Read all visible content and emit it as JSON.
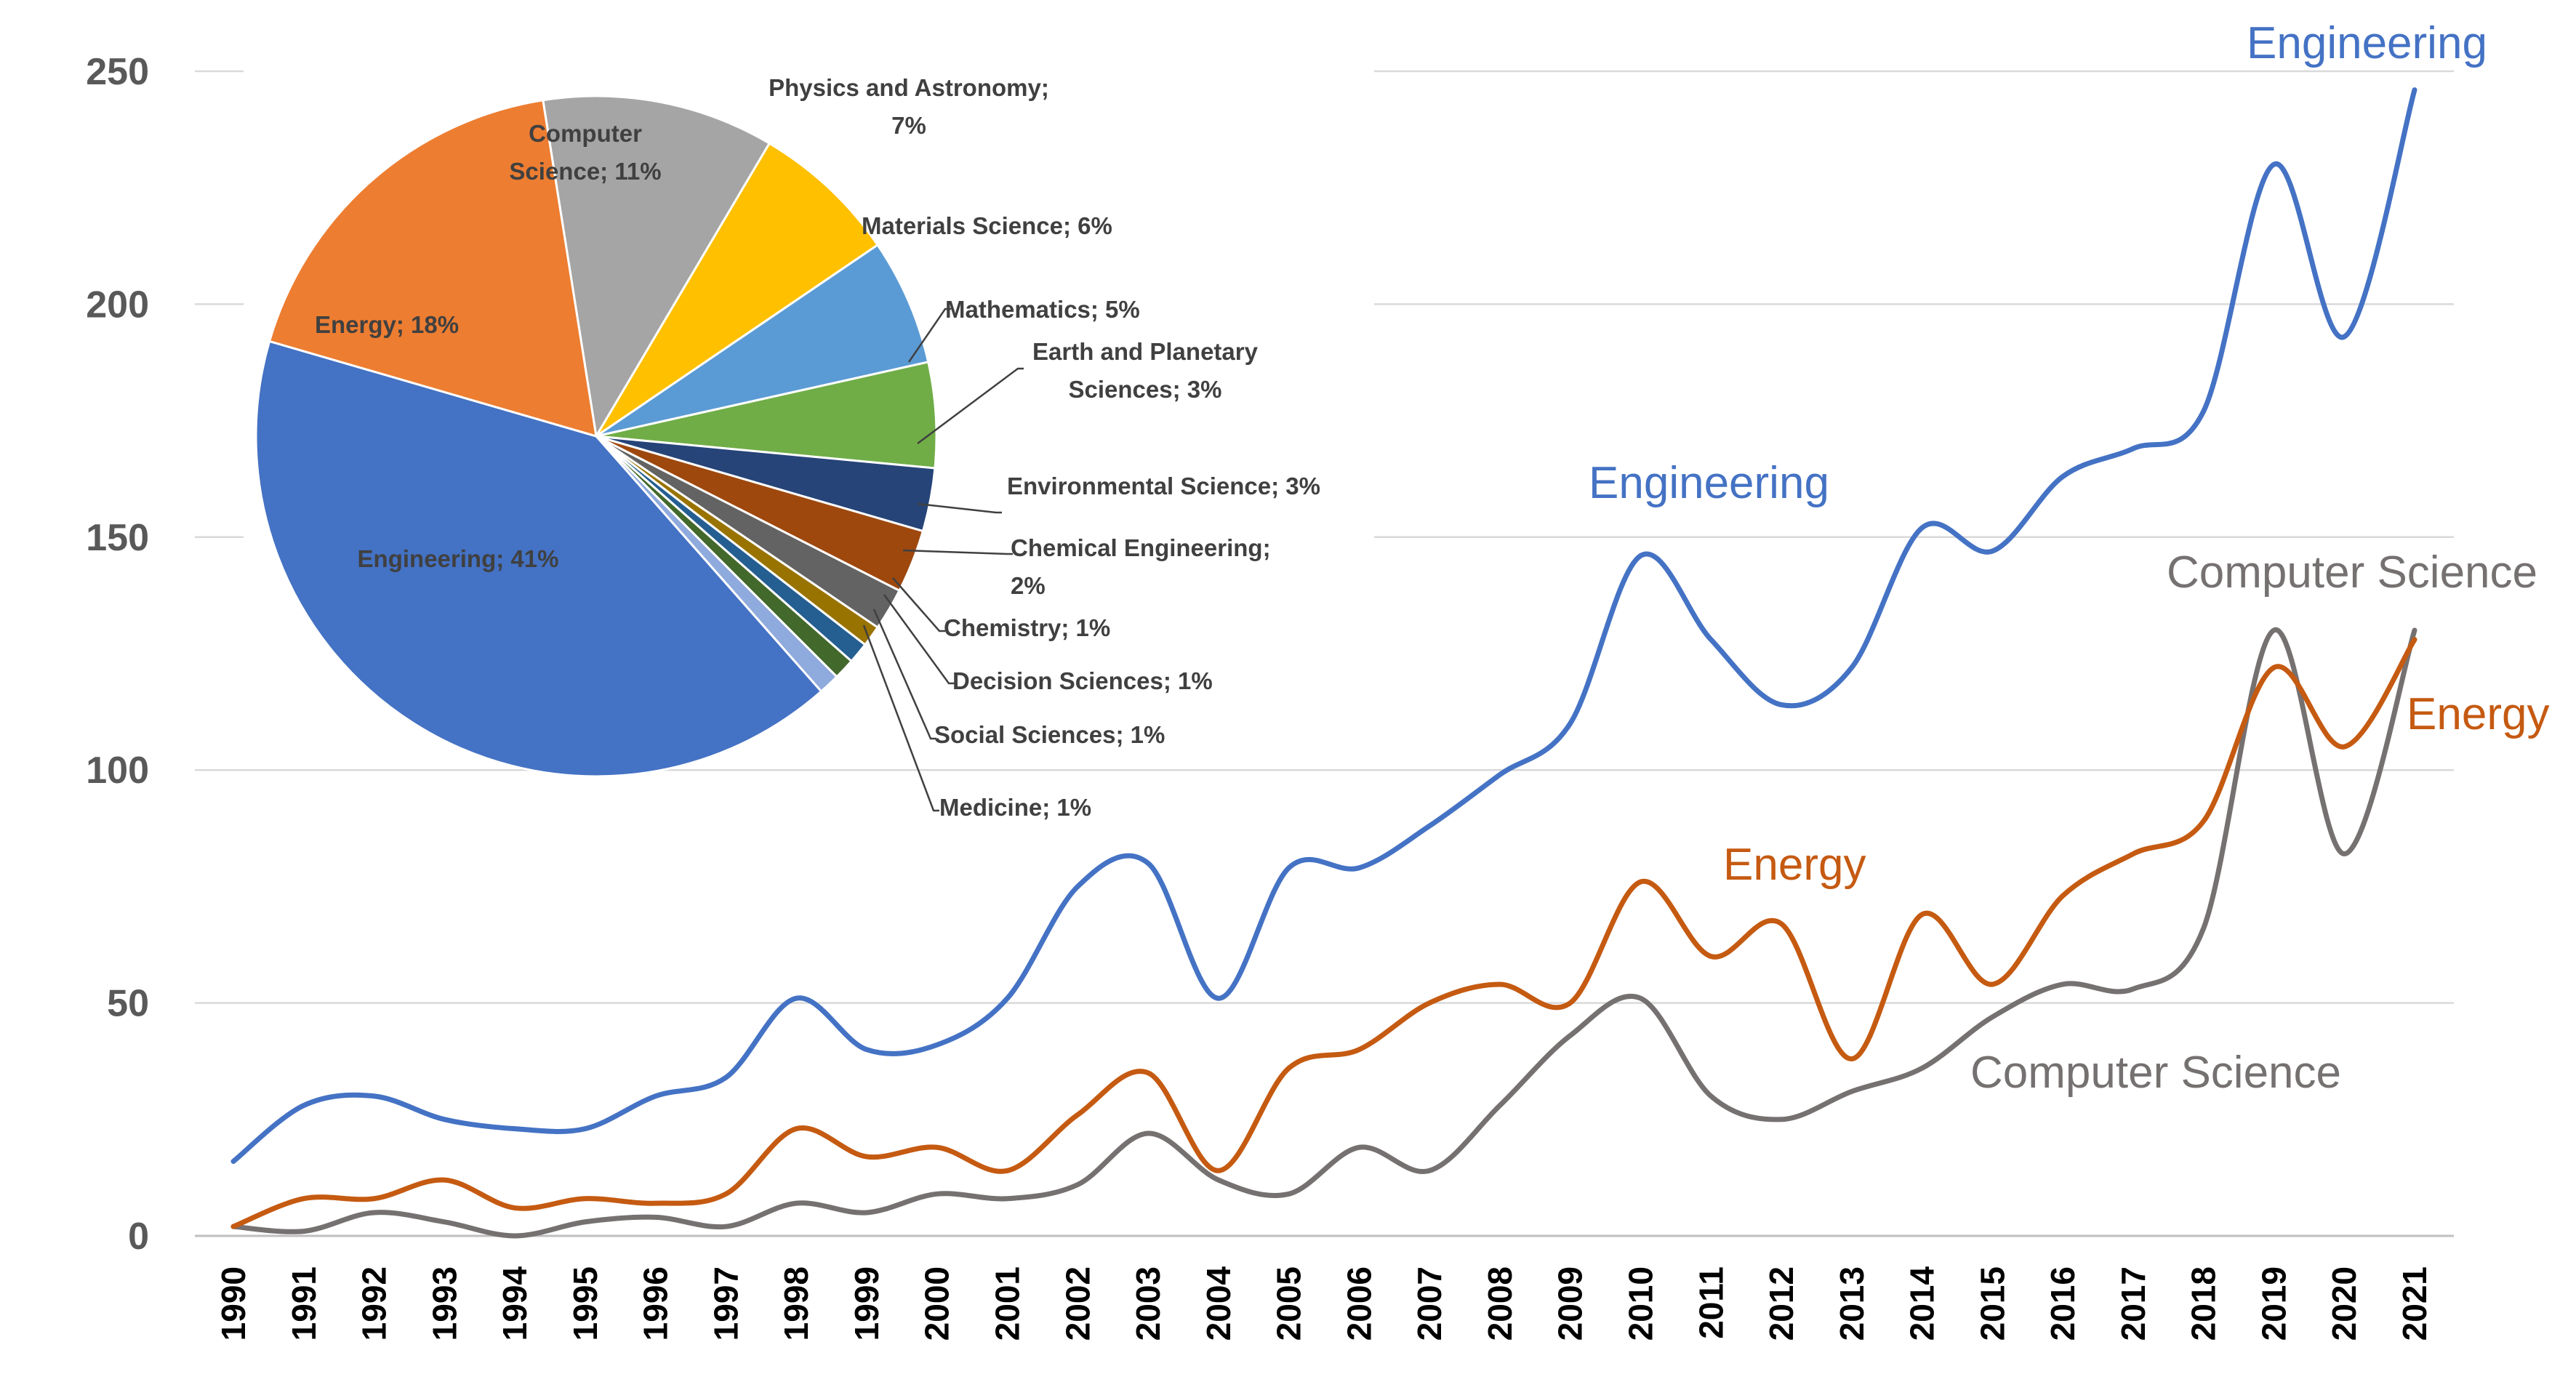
{
  "chart_data": [
    {
      "type": "line",
      "title": "",
      "xlabel": "",
      "ylabel": "",
      "ylim": [
        0,
        250
      ],
      "yticks": [
        0,
        50,
        100,
        150,
        200,
        250
      ],
      "grid": true,
      "x": [
        "1990",
        "1991",
        "1992",
        "1993",
        "1994",
        "1995",
        "1996",
        "1997",
        "1998",
        "1999",
        "2000",
        "2001",
        "2002",
        "2003",
        "2004",
        "2005",
        "2006",
        "2007",
        "2008",
        "2009",
        "2010",
        "2011",
        "2012",
        "2013",
        "2014",
        "2015",
        "2016",
        "2017",
        "2018",
        "2019",
        "2020",
        "2021"
      ],
      "series": [
        {
          "name": "Engineering",
          "color": "#4472C4",
          "values": [
            16,
            28,
            30,
            25,
            23,
            23,
            30,
            34,
            51,
            40,
            41,
            51,
            75,
            80,
            51,
            79,
            79,
            88,
            99,
            110,
            146,
            128,
            114,
            122,
            152,
            147,
            163,
            169,
            177,
            230,
            193,
            246
          ],
          "labels": [
            "Engineering",
            "Engineering"
          ]
        },
        {
          "name": "Energy",
          "color": "#C55A11",
          "values": [
            2,
            8,
            8,
            12,
            6,
            8,
            7,
            9,
            23,
            17,
            19,
            14,
            26,
            35,
            14,
            36,
            40,
            50,
            54,
            50,
            76,
            60,
            67,
            38,
            69,
            54,
            73,
            82,
            89,
            122,
            105,
            128
          ],
          "labels": [
            "Energy",
            "Energy"
          ]
        },
        {
          "name": "Computer Science",
          "color": "#767171",
          "values": [
            2,
            1,
            5,
            3,
            0,
            3,
            4,
            2,
            7,
            5,
            9,
            8,
            11,
            22,
            12,
            9,
            19,
            14,
            28,
            43,
            51,
            30,
            25,
            31,
            36,
            47,
            54,
            53,
            66,
            130,
            82,
            130
          ],
          "labels": [
            "Computer Science",
            "Computer Science"
          ]
        }
      ]
    },
    {
      "type": "pie",
      "title": "",
      "slices": [
        {
          "label": "Computer Science; 11%",
          "value": 11,
          "color": "#A5A5A5"
        },
        {
          "label": "Physics and Astronomy; 7%",
          "value": 7,
          "color": "#FFC000"
        },
        {
          "label": "Materials Science; 6%",
          "value": 6,
          "color": "#5B9BD5"
        },
        {
          "label": "Mathematics; 5%",
          "value": 5,
          "color": "#70AD47"
        },
        {
          "label": "Earth and Planetary Sciences; 3%",
          "value": 3,
          "color": "#264478"
        },
        {
          "label": "Environmental Science; 3%",
          "value": 3,
          "color": "#9E480E"
        },
        {
          "label": "Chemical Engineering; 2%",
          "value": 2,
          "color": "#636363"
        },
        {
          "label": "Chemistry; 1%",
          "value": 1,
          "color": "#997300"
        },
        {
          "label": "Decision Sciences; 1%",
          "value": 1,
          "color": "#255E91"
        },
        {
          "label": "Social Sciences; 1%",
          "value": 1,
          "color": "#43682B"
        },
        {
          "label": "Medicine; 1%",
          "value": 1,
          "color": "#8FAADC"
        },
        {
          "label": "Engineering; 41%",
          "value": 41,
          "color": "#4472C4"
        },
        {
          "label": "Energy; 18%",
          "value": 18,
          "color": "#ED7D31"
        }
      ],
      "label_lines": {
        "Computer Science; 11%": [
          "Computer",
          "Science; 11%"
        ],
        "Physics and Astronomy; 7%": [
          "Physics and Astronomy;",
          "7%"
        ],
        "Earth and Planetary Sciences; 3%": [
          "Earth and Planetary",
          "Sciences; 3%"
        ],
        "Chemical Engineering; 2%": [
          "Chemical Engineering;",
          "2%"
        ]
      }
    }
  ]
}
